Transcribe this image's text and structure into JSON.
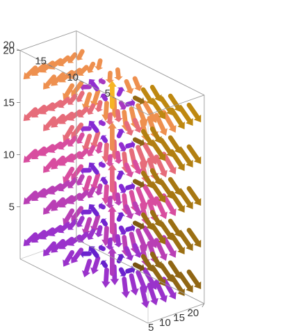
{
  "chart_data": {
    "type": "vector-field-3d",
    "title": "",
    "xlabel": "",
    "ylabel": "",
    "zlabel": "",
    "axes": {
      "x": {
        "range": [
          0,
          20
        ],
        "ticks": [
          "5",
          "10",
          "15",
          "20"
        ]
      },
      "y": {
        "range": [
          0,
          20
        ],
        "ticks": [
          "5",
          "10",
          "15",
          "20"
        ]
      },
      "z": {
        "range": [
          0,
          20
        ],
        "ticks": [
          "5",
          "10",
          "15",
          "20"
        ]
      }
    },
    "boxed": true,
    "grid": false,
    "field_center": {
      "x": 10,
      "y": 10
    },
    "colors": {
      "low": "#2a0f4e",
      "mid_low": "#5a1ec8",
      "mid": "#8a2bd6",
      "mid_high": "#e0509a",
      "high": "#f6b524"
    },
    "colors_far_side": {
      "low": "#4a2a10",
      "mid": "#8a6214",
      "high": "#c9900f"
    }
  }
}
